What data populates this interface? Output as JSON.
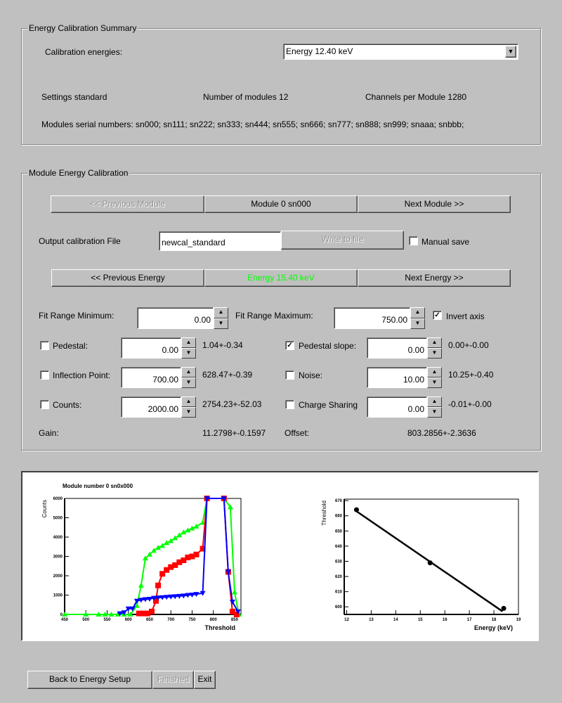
{
  "summary": {
    "title": "Energy Calibration Summary",
    "energies_label": "Calibration energies:",
    "energies_value": "Energy 12.40 keV",
    "settings": "Settings standard",
    "modules": "Number of modules 12",
    "channels": "Channels per Module 1280",
    "serials": "Modules serial numbers: sn000; sn111; sn222; sn333; sn444; sn555; sn666; sn777; sn888; sn999; snaaa; snbbb;"
  },
  "module": {
    "title": "Module Energy Calibration",
    "prev_module": "<< Previous Module",
    "current_module": "Module 0 sn000",
    "next_module": "Next Module >>",
    "output_label": "Output calibration File",
    "output_value": "newcal_standard",
    "write_button": "Write to file",
    "manual_save": "Manual save",
    "manual_save_checked": false,
    "prev_energy": "<< Previous Energy",
    "current_energy": "Energy 15.40 keV",
    "current_energy_color": "#00ff00",
    "next_energy": "Next Energy >>",
    "fit_min_label": "Fit Range Minimum:",
    "fit_min": "0.00",
    "fit_max_label": "Fit Range Maximum:",
    "fit_max": "750.00",
    "invert_axis": "Invert axis",
    "invert_axis_checked": true,
    "params": [
      {
        "label": "Pedestal:",
        "value": "0.00",
        "result": "1.04+-0.34",
        "checked": false
      },
      {
        "label": "Pedestal slope:",
        "value": "0.00",
        "result": "0.00+-0.00",
        "checked": true
      },
      {
        "label": "Inflection Point:",
        "value": "700.00",
        "result": "628.47+-0.39",
        "checked": false
      },
      {
        "label": "Noise:",
        "value": "10.00",
        "result": "10.25+-0.40",
        "checked": false
      },
      {
        "label": "Counts:",
        "value": "2000.00",
        "result": "2754.23+-52.03",
        "checked": false
      },
      {
        "label": "Charge Sharing",
        "value": "0.00",
        "result": "-0.01+-0.00",
        "checked": false
      }
    ],
    "gain_label": "Gain:",
    "gain": "11.2798+-0.1597",
    "offset_label": "Offset:",
    "offset": "803.2856+-2.3636"
  },
  "footer": {
    "back": "Back to Energy Setup",
    "finished": "Finished",
    "exit": "Exit"
  },
  "chart_data": [
    {
      "type": "scatter",
      "title": "Module number 0 sn0x000",
      "xlabel": "Threshold",
      "ylabel": "Counts",
      "xlim": [
        450,
        865
      ],
      "ylim": [
        0,
        6000
      ],
      "xticks": [
        "450",
        "500",
        "550",
        "600",
        "650",
        "700",
        "750",
        "800",
        "850"
      ],
      "yticks": [
        "0",
        "1000",
        "2000",
        "3000",
        "4000",
        "5000",
        "6000"
      ],
      "series": [
        {
          "color": "#00ff00",
          "marker": "triangle-up",
          "x": [
            450,
            500,
            530,
            545,
            560,
            575,
            590,
            605,
            620,
            630,
            640,
            650,
            660,
            670,
            680,
            690,
            700,
            710,
            720,
            730,
            740,
            750,
            760,
            775,
            785,
            825,
            840,
            850,
            860
          ],
          "y": [
            0,
            0,
            0,
            0,
            0,
            0,
            0,
            0,
            450,
            1500,
            2900,
            3100,
            3300,
            3450,
            3550,
            3700,
            3800,
            3950,
            4100,
            4250,
            4350,
            4450,
            4550,
            4750,
            6000,
            6000,
            5550,
            1150,
            0
          ]
        },
        {
          "color": "#ff0000",
          "marker": "square",
          "x": [
            625,
            635,
            645,
            655,
            665,
            670,
            680,
            690,
            700,
            710,
            720,
            730,
            740,
            750,
            760,
            775,
            785,
            825,
            835,
            845,
            855
          ],
          "y": [
            50,
            50,
            50,
            150,
            700,
            1500,
            2100,
            2300,
            2450,
            2550,
            2700,
            2800,
            2950,
            3000,
            3100,
            3400,
            6000,
            6000,
            2200,
            150,
            0
          ]
        },
        {
          "color": "#0000ff",
          "marker": "triangle-down",
          "x": [
            580,
            590,
            600,
            610,
            620,
            630,
            640,
            650,
            660,
            670,
            680,
            690,
            700,
            710,
            720,
            730,
            740,
            750,
            760,
            775,
            785,
            825,
            835,
            845,
            858
          ],
          "y": [
            50,
            100,
            300,
            300,
            700,
            750,
            780,
            800,
            850,
            870,
            880,
            900,
            920,
            930,
            950,
            970,
            1000,
            1020,
            1050,
            1100,
            6000,
            6000,
            2200,
            650,
            150
          ]
        }
      ]
    },
    {
      "type": "scatter",
      "xlabel": "Energy (keV)",
      "ylabel": "Threshold",
      "xlim": [
        11.9,
        19
      ],
      "ylim": [
        595,
        671
      ],
      "xticks": [
        "12",
        "13",
        "14",
        "15",
        "16",
        "17",
        "18",
        "19"
      ],
      "yticks": [
        "600",
        "610",
        "620",
        "630",
        "640",
        "650",
        "660",
        "670"
      ],
      "points": {
        "x": [
          12.4,
          15.4,
          18.4
        ],
        "y": [
          664,
          629,
          599
        ]
      },
      "fit": {
        "x": [
          12.4,
          18.35
        ],
        "y": [
          663,
          597
        ]
      }
    }
  ]
}
